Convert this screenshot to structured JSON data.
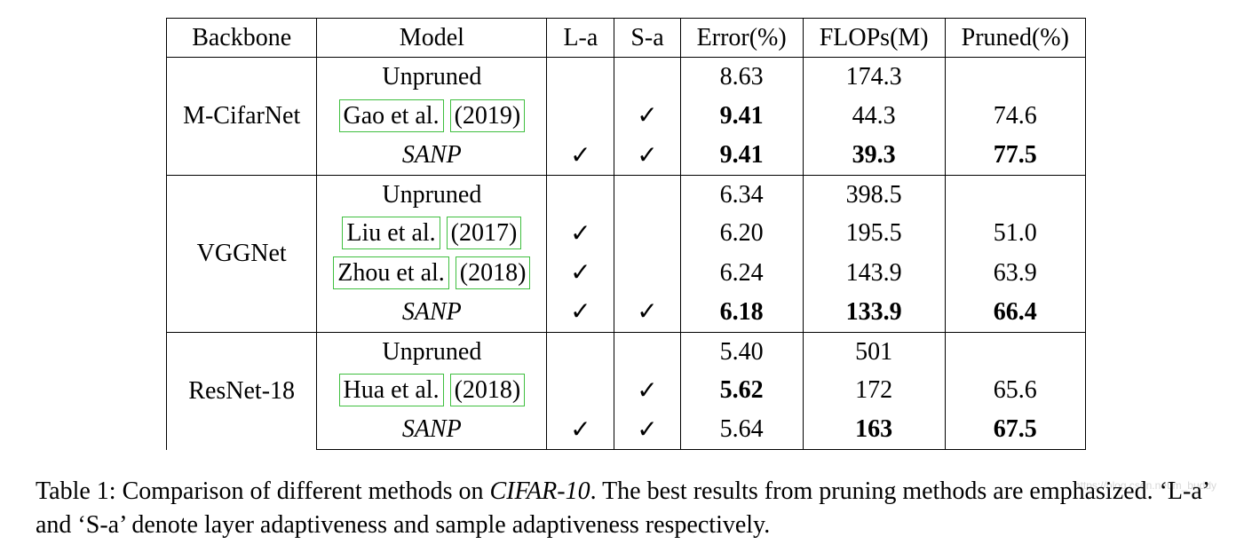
{
  "columns": [
    "Backbone",
    "Model",
    "L-a",
    "S-a",
    "Error(%)",
    "FLOPs(M)",
    "Pruned(%)"
  ],
  "checkmark": "✓",
  "groups": [
    {
      "backbone": "M-CifarNet",
      "rows": [
        {
          "model": "Unpruned",
          "cite": false,
          "italic": false,
          "la": false,
          "sa": false,
          "error": "8.63",
          "error_bold": false,
          "flops": "174.3",
          "flops_bold": false,
          "pruned": "",
          "pruned_bold": false
        },
        {
          "model": "Gao et al.",
          "year": "(2019)",
          "cite": true,
          "italic": false,
          "la": false,
          "sa": true,
          "error": "9.41",
          "error_bold": true,
          "flops": "44.3",
          "flops_bold": false,
          "pruned": "74.6",
          "pruned_bold": false
        },
        {
          "model": "SANP",
          "cite": false,
          "italic": true,
          "la": true,
          "sa": true,
          "error": "9.41",
          "error_bold": true,
          "flops": "39.3",
          "flops_bold": true,
          "pruned": "77.5",
          "pruned_bold": true
        }
      ]
    },
    {
      "backbone": "VGGNet",
      "rows": [
        {
          "model": "Unpruned",
          "cite": false,
          "italic": false,
          "la": false,
          "sa": false,
          "error": "6.34",
          "error_bold": false,
          "flops": "398.5",
          "flops_bold": false,
          "pruned": "",
          "pruned_bold": false
        },
        {
          "model": "Liu et al.",
          "year": "(2017)",
          "cite": true,
          "italic": false,
          "la": true,
          "sa": false,
          "error": "6.20",
          "error_bold": false,
          "flops": "195.5",
          "flops_bold": false,
          "pruned": "51.0",
          "pruned_bold": false
        },
        {
          "model": "Zhou et al.",
          "year": "(2018)",
          "cite": true,
          "italic": false,
          "la": true,
          "sa": false,
          "error": "6.24",
          "error_bold": false,
          "flops": "143.9",
          "flops_bold": false,
          "pruned": "63.9",
          "pruned_bold": false
        },
        {
          "model": "SANP",
          "cite": false,
          "italic": true,
          "la": true,
          "sa": true,
          "error": "6.18",
          "error_bold": true,
          "flops": "133.9",
          "flops_bold": true,
          "pruned": "66.4",
          "pruned_bold": true
        }
      ]
    },
    {
      "backbone": "ResNet-18",
      "rows": [
        {
          "model": "Unpruned",
          "cite": false,
          "italic": false,
          "la": false,
          "sa": false,
          "error": "5.40",
          "error_bold": false,
          "flops": "501",
          "flops_bold": false,
          "pruned": "",
          "pruned_bold": false
        },
        {
          "model": "Hua et al.",
          "year": "(2018)",
          "cite": true,
          "italic": false,
          "la": false,
          "sa": true,
          "error": "5.62",
          "error_bold": true,
          "flops": "172",
          "flops_bold": false,
          "pruned": "65.6",
          "pruned_bold": false
        },
        {
          "model": "SANP",
          "cite": false,
          "italic": true,
          "la": true,
          "sa": true,
          "error": "5.64",
          "error_bold": false,
          "flops": "163",
          "flops_bold": true,
          "pruned": "67.5",
          "pruned_bold": true
        }
      ]
    }
  ],
  "caption_prefix": "Table 1: Comparison of different methods on ",
  "caption_dataset": "CIFAR-10",
  "caption_suffix": ". The best results from pruning methods are emphasized. ‘L-a’ and ‘S-a’ denote layer adaptiveness and sample adaptiveness respectively.",
  "watermark": "https://blog.csdn.net/m_buddy"
}
